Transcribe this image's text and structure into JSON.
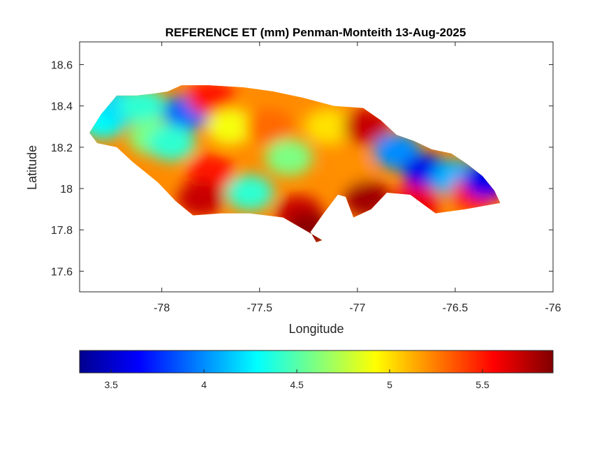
{
  "chart_data": {
    "type": "heatmap",
    "title": "REFERENCE ET (mm) Penman-Monteith 13-Aug-2025",
    "xlabel": "Longitude",
    "ylabel": "Latitude",
    "xlim": [
      -78.42,
      -76.0
    ],
    "ylim": [
      17.5,
      18.71
    ],
    "x_ticks": [
      -78,
      -77.5,
      -77,
      -76.5,
      -76
    ],
    "x_tick_labels": [
      "-78",
      "-77.5",
      "-77",
      "-76.5",
      "-76"
    ],
    "y_ticks": [
      17.6,
      17.8,
      18.0,
      18.2,
      18.4,
      18.6
    ],
    "y_tick_labels": [
      "17.6",
      "17.8",
      "18",
      "18.2",
      "18.4",
      "18.6"
    ],
    "colormap": "jet",
    "colorbar": {
      "location": "below",
      "range": [
        3.33,
        5.88
      ],
      "ticks": [
        3.5,
        4,
        4.5,
        5,
        5.5
      ],
      "tick_labels": [
        "3.5",
        "4",
        "4.5",
        "5",
        "5.5"
      ]
    },
    "region_outline": [
      [
        -78.37,
        18.27
      ],
      [
        -78.31,
        18.36
      ],
      [
        -78.23,
        18.45
      ],
      [
        -78.13,
        18.45
      ],
      [
        -78.04,
        18.46
      ],
      [
        -77.97,
        18.47
      ],
      [
        -77.9,
        18.5
      ],
      [
        -77.76,
        18.5
      ],
      [
        -77.58,
        18.49
      ],
      [
        -77.43,
        18.47
      ],
      [
        -77.28,
        18.44
      ],
      [
        -77.12,
        18.4
      ],
      [
        -76.97,
        18.39
      ],
      [
        -76.88,
        18.33
      ],
      [
        -76.8,
        18.26
      ],
      [
        -76.71,
        18.23
      ],
      [
        -76.62,
        18.19
      ],
      [
        -76.52,
        18.17
      ],
      [
        -76.44,
        18.12
      ],
      [
        -76.36,
        18.06
      ],
      [
        -76.3,
        17.99
      ],
      [
        -76.27,
        17.93
      ],
      [
        -76.33,
        17.92
      ],
      [
        -76.45,
        17.9
      ],
      [
        -76.6,
        17.88
      ],
      [
        -76.73,
        17.97
      ],
      [
        -76.85,
        17.98
      ],
      [
        -76.93,
        17.9
      ],
      [
        -77.02,
        17.86
      ],
      [
        -77.06,
        17.96
      ],
      [
        -77.1,
        17.97
      ],
      [
        -77.18,
        17.87
      ],
      [
        -77.24,
        17.79
      ],
      [
        -77.21,
        17.74
      ],
      [
        -77.18,
        17.75
      ],
      [
        -77.27,
        17.8
      ],
      [
        -77.38,
        17.86
      ],
      [
        -77.55,
        17.88
      ],
      [
        -77.7,
        17.88
      ],
      [
        -77.84,
        17.87
      ],
      [
        -77.93,
        17.94
      ],
      [
        -78.02,
        18.03
      ],
      [
        -78.15,
        18.13
      ],
      [
        -78.23,
        18.2
      ],
      [
        -78.33,
        18.22
      ]
    ],
    "value_field": [
      {
        "lon": -78.3,
        "lat": 18.33,
        "value": 4.3
      },
      {
        "lon": -78.2,
        "lat": 18.4,
        "value": 4.2
      },
      {
        "lon": -78.1,
        "lat": 18.4,
        "value": 4.4
      },
      {
        "lon": -78.05,
        "lat": 18.25,
        "value": 4.6
      },
      {
        "lon": -77.87,
        "lat": 18.37,
        "value": 3.9
      },
      {
        "lon": -77.95,
        "lat": 18.22,
        "value": 4.4
      },
      {
        "lon": -77.75,
        "lat": 18.44,
        "value": 5.5
      },
      {
        "lon": -77.65,
        "lat": 18.3,
        "value": 4.9
      },
      {
        "lon": -77.75,
        "lat": 18.08,
        "value": 5.5
      },
      {
        "lon": -77.8,
        "lat": 17.95,
        "value": 5.7
      },
      {
        "lon": -77.55,
        "lat": 17.98,
        "value": 4.4
      },
      {
        "lon": -77.45,
        "lat": 18.3,
        "value": 5.3
      },
      {
        "lon": -77.35,
        "lat": 18.15,
        "value": 4.6
      },
      {
        "lon": -77.3,
        "lat": 17.88,
        "value": 5.7
      },
      {
        "lon": -77.25,
        "lat": 17.8,
        "value": 5.85
      },
      {
        "lon": -77.15,
        "lat": 18.3,
        "value": 5.0
      },
      {
        "lon": -77.05,
        "lat": 18.1,
        "value": 5.2
      },
      {
        "lon": -76.95,
        "lat": 17.95,
        "value": 5.8
      },
      {
        "lon": -76.95,
        "lat": 18.3,
        "value": 5.7
      },
      {
        "lon": -76.8,
        "lat": 18.18,
        "value": 4.0
      },
      {
        "lon": -76.65,
        "lat": 18.08,
        "value": 3.6
      },
      {
        "lon": -76.5,
        "lat": 18.05,
        "value": 4.1
      },
      {
        "lon": -76.4,
        "lat": 17.98,
        "value": 5.5
      },
      {
        "lon": -76.34,
        "lat": 18.04,
        "value": 3.6
      },
      {
        "lon": -76.7,
        "lat": 17.93,
        "value": 5.6
      }
    ]
  }
}
